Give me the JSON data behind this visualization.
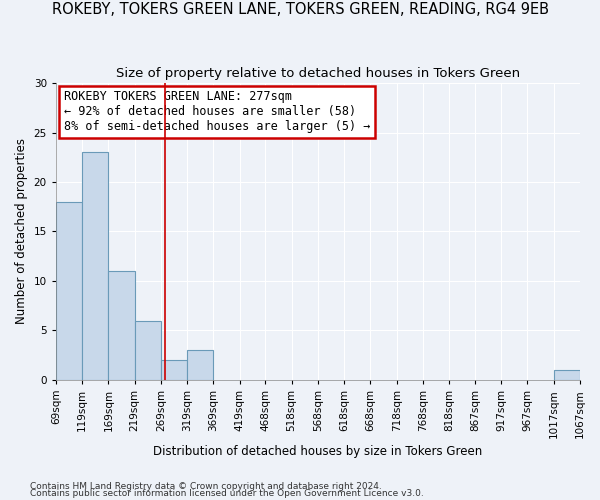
{
  "title": "ROKEBY, TOKERS GREEN LANE, TOKERS GREEN, READING, RG4 9EB",
  "subtitle": "Size of property relative to detached houses in Tokers Green",
  "xlabel": "Distribution of detached houses by size in Tokers Green",
  "ylabel": "Number of detached properties",
  "footnote1": "Contains HM Land Registry data © Crown copyright and database right 2024.",
  "footnote2": "Contains public sector information licensed under the Open Government Licence v3.0.",
  "bin_edges": [
    69,
    119,
    169,
    219,
    269,
    319,
    369,
    419,
    468,
    518,
    568,
    618,
    668,
    718,
    768,
    818,
    867,
    917,
    967,
    1017,
    1067
  ],
  "bar_heights": [
    18,
    23,
    11,
    6,
    2,
    3,
    0,
    0,
    0,
    0,
    0,
    0,
    0,
    0,
    0,
    0,
    0,
    0,
    0,
    1,
    0
  ],
  "bar_color": "#c8d8ea",
  "bar_edge_color": "#6a9ab8",
  "red_line_x": 277,
  "ylim": [
    0,
    30
  ],
  "yticks": [
    0,
    5,
    10,
    15,
    20,
    25,
    30
  ],
  "annotation_title": "ROKEBY TOKERS GREEN LANE: 277sqm",
  "annotation_line1": "← 92% of detached houses are smaller (58)",
  "annotation_line2": "8% of semi-detached houses are larger (5) →",
  "annotation_box_color": "#ffffff",
  "annotation_edge_color": "#cc0000",
  "background_color": "#eef2f8",
  "grid_color": "#ffffff",
  "title_fontsize": 10.5,
  "subtitle_fontsize": 9.5,
  "axis_label_fontsize": 8.5,
  "tick_fontsize": 7.5,
  "annotation_fontsize": 8.5
}
